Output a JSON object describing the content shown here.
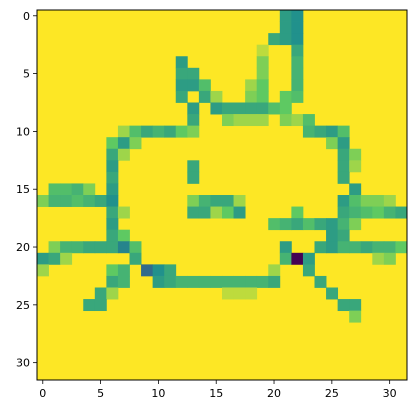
{
  "chart_data": {
    "type": "heatmap",
    "title": "",
    "xlabel": "",
    "ylabel": "",
    "colormap": "viridis",
    "value_range": [
      0,
      1
    ],
    "background_value": 1.0,
    "grid": false,
    "x_ticks": [
      0,
      5,
      10,
      15,
      20,
      25,
      30
    ],
    "y_ticks": [
      0,
      5,
      10,
      15,
      20,
      25,
      30
    ],
    "x_tick_labels": [
      "0",
      "5",
      "10",
      "15",
      "20",
      "25",
      "30"
    ],
    "y_tick_labels": [
      "0",
      "5",
      "10",
      "15",
      "20",
      "25",
      "30"
    ],
    "xlim": [
      -0.5,
      31.5
    ],
    "ylim": [
      31.5,
      -0.5
    ],
    "nonbackground_cells": [
      [
        0,
        21,
        0.55
      ],
      [
        0,
        22,
        0.5
      ],
      [
        1,
        21,
        0.55
      ],
      [
        1,
        22,
        0.5
      ],
      [
        2,
        20,
        0.6
      ],
      [
        2,
        21,
        0.55
      ],
      [
        2,
        22,
        0.5
      ],
      [
        3,
        19,
        0.9
      ],
      [
        3,
        22,
        0.6
      ],
      [
        4,
        12,
        0.55
      ],
      [
        4,
        19,
        0.8
      ],
      [
        4,
        22,
        0.65
      ],
      [
        5,
        12,
        0.6
      ],
      [
        5,
        13,
        0.6
      ],
      [
        5,
        19,
        0.8
      ],
      [
        5,
        22,
        0.65
      ],
      [
        6,
        12,
        0.55
      ],
      [
        6,
        13,
        0.55
      ],
      [
        6,
        14,
        0.7
      ],
      [
        6,
        18,
        0.85
      ],
      [
        6,
        19,
        0.75
      ],
      [
        6,
        22,
        0.65
      ],
      [
        7,
        12,
        0.6
      ],
      [
        7,
        14,
        0.6
      ],
      [
        7,
        15,
        0.85
      ],
      [
        7,
        18,
        0.8
      ],
      [
        7,
        19,
        0.75
      ],
      [
        7,
        21,
        0.75
      ],
      [
        7,
        22,
        0.7
      ],
      [
        8,
        13,
        0.55
      ],
      [
        8,
        15,
        0.55
      ],
      [
        8,
        16,
        0.6
      ],
      [
        8,
        17,
        0.6
      ],
      [
        8,
        18,
        0.6
      ],
      [
        8,
        19,
        0.6
      ],
      [
        8,
        20,
        0.7
      ],
      [
        8,
        21,
        0.75
      ],
      [
        9,
        13,
        0.6
      ],
      [
        9,
        16,
        0.8
      ],
      [
        9,
        17,
        0.85
      ],
      [
        9,
        18,
        0.85
      ],
      [
        9,
        19,
        0.85
      ],
      [
        9,
        21,
        0.8
      ],
      [
        9,
        22,
        0.85
      ],
      [
        9,
        23,
        0.7
      ],
      [
        10,
        7,
        0.85
      ],
      [
        10,
        8,
        0.7
      ],
      [
        10,
        9,
        0.6
      ],
      [
        10,
        10,
        0.65
      ],
      [
        10,
        11,
        0.6
      ],
      [
        10,
        12,
        0.75
      ],
      [
        10,
        13,
        0.8
      ],
      [
        10,
        23,
        0.65
      ],
      [
        10,
        24,
        0.6
      ],
      [
        10,
        25,
        0.55
      ],
      [
        10,
        26,
        0.7
      ],
      [
        11,
        6,
        0.75
      ],
      [
        11,
        7,
        0.55
      ],
      [
        11,
        8,
        0.8
      ],
      [
        11,
        25,
        0.8
      ],
      [
        11,
        26,
        0.55
      ],
      [
        12,
        6,
        0.6
      ],
      [
        12,
        7,
        0.85
      ],
      [
        12,
        26,
        0.6
      ],
      [
        12,
        27,
        0.8
      ],
      [
        13,
        6,
        0.55
      ],
      [
        13,
        13,
        0.6
      ],
      [
        13,
        26,
        0.6
      ],
      [
        13,
        27,
        0.85
      ],
      [
        14,
        6,
        0.6
      ],
      [
        14,
        13,
        0.6
      ],
      [
        14,
        26,
        0.6
      ],
      [
        15,
        1,
        0.7
      ],
      [
        15,
        2,
        0.7
      ],
      [
        15,
        3,
        0.65
      ],
      [
        15,
        4,
        0.8
      ],
      [
        15,
        6,
        0.55
      ],
      [
        15,
        27,
        0.55
      ],
      [
        16,
        0,
        0.8
      ],
      [
        16,
        1,
        0.65
      ],
      [
        16,
        2,
        0.65
      ],
      [
        16,
        3,
        0.7
      ],
      [
        16,
        4,
        0.65
      ],
      [
        16,
        5,
        0.6
      ],
      [
        16,
        6,
        0.5
      ],
      [
        16,
        13,
        0.8
      ],
      [
        16,
        14,
        0.65
      ],
      [
        16,
        15,
        0.6
      ],
      [
        16,
        16,
        0.6
      ],
      [
        16,
        17,
        0.85
      ],
      [
        16,
        26,
        0.55
      ],
      [
        16,
        27,
        0.7
      ],
      [
        16,
        28,
        0.8
      ],
      [
        16,
        29,
        0.8
      ],
      [
        16,
        30,
        0.85
      ],
      [
        17,
        6,
        0.6
      ],
      [
        17,
        7,
        0.85
      ],
      [
        17,
        13,
        0.6
      ],
      [
        17,
        14,
        0.6
      ],
      [
        17,
        15,
        0.85
      ],
      [
        17,
        16,
        0.75
      ],
      [
        17,
        17,
        0.55
      ],
      [
        17,
        22,
        0.75
      ],
      [
        17,
        26,
        0.6
      ],
      [
        17,
        27,
        0.65
      ],
      [
        17,
        28,
        0.7
      ],
      [
        17,
        29,
        0.75
      ],
      [
        17,
        30,
        0.65
      ],
      [
        17,
        31,
        0.6
      ],
      [
        18,
        6,
        0.55
      ],
      [
        18,
        20,
        0.7
      ],
      [
        18,
        21,
        0.65
      ],
      [
        18,
        22,
        0.6
      ],
      [
        18,
        23,
        0.7
      ],
      [
        18,
        24,
        0.6
      ],
      [
        18,
        25,
        0.55
      ],
      [
        18,
        26,
        0.65
      ],
      [
        18,
        27,
        0.8
      ],
      [
        19,
        6,
        0.6
      ],
      [
        19,
        7,
        0.75
      ],
      [
        19,
        25,
        0.55
      ],
      [
        19,
        26,
        0.6
      ],
      [
        20,
        1,
        0.8
      ],
      [
        20,
        2,
        0.65
      ],
      [
        20,
        3,
        0.65
      ],
      [
        20,
        4,
        0.6
      ],
      [
        20,
        5,
        0.6
      ],
      [
        20,
        6,
        0.6
      ],
      [
        20,
        7,
        0.45
      ],
      [
        20,
        8,
        0.7
      ],
      [
        20,
        21,
        0.55
      ],
      [
        20,
        24,
        0.6
      ],
      [
        20,
        25,
        0.55
      ],
      [
        20,
        26,
        0.65
      ],
      [
        20,
        27,
        0.65
      ],
      [
        20,
        28,
        0.6
      ],
      [
        20,
        29,
        0.65
      ],
      [
        20,
        30,
        0.65
      ],
      [
        20,
        31,
        0.75
      ],
      [
        21,
        0,
        0.55
      ],
      [
        21,
        1,
        0.6
      ],
      [
        21,
        2,
        0.85
      ],
      [
        21,
        8,
        0.6
      ],
      [
        21,
        21,
        0.65
      ],
      [
        21,
        22,
        0.0
      ],
      [
        21,
        23,
        0.55
      ],
      [
        21,
        29,
        0.85
      ],
      [
        21,
        30,
        0.8
      ],
      [
        22,
        0,
        0.85
      ],
      [
        22,
        6,
        0.75
      ],
      [
        22,
        7,
        0.65
      ],
      [
        22,
        9,
        0.35
      ],
      [
        22,
        10,
        0.5
      ],
      [
        22,
        11,
        0.6
      ],
      [
        22,
        20,
        0.85
      ],
      [
        22,
        23,
        0.6
      ],
      [
        23,
        6,
        0.6
      ],
      [
        23,
        7,
        0.65
      ],
      [
        23,
        10,
        0.55
      ],
      [
        23,
        11,
        0.6
      ],
      [
        23,
        12,
        0.65
      ],
      [
        23,
        13,
        0.65
      ],
      [
        23,
        14,
        0.65
      ],
      [
        23,
        15,
        0.65
      ],
      [
        23,
        16,
        0.65
      ],
      [
        23,
        17,
        0.65
      ],
      [
        23,
        18,
        0.65
      ],
      [
        23,
        19,
        0.65
      ],
      [
        23,
        20,
        0.6
      ],
      [
        23,
        24,
        0.6
      ],
      [
        24,
        5,
        0.6
      ],
      [
        24,
        6,
        0.85
      ],
      [
        24,
        16,
        0.9
      ],
      [
        24,
        17,
        0.9
      ],
      [
        24,
        18,
        0.9
      ],
      [
        24,
        25,
        0.6
      ],
      [
        25,
        4,
        0.6
      ],
      [
        25,
        5,
        0.6
      ],
      [
        25,
        26,
        0.6
      ],
      [
        25,
        27,
        0.6
      ],
      [
        26,
        27,
        0.8
      ]
    ]
  }
}
